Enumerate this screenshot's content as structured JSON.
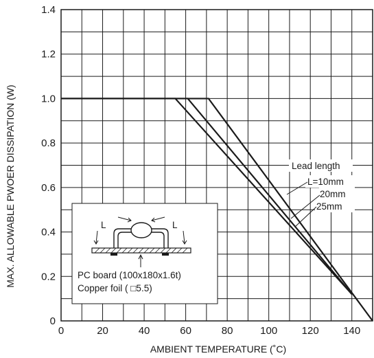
{
  "chart_data": {
    "type": "line",
    "title": "",
    "xlabel": "AMBIENT TEMPERATURE (˚C)",
    "ylabel": "MAX. ALLOWABLE PWOER DISSIPATION (W)",
    "xlim": [
      0,
      150
    ],
    "ylim": [
      0,
      1.4
    ],
    "x_ticks": [
      "0",
      "20",
      "40",
      "60",
      "80",
      "100",
      "120",
      "140"
    ],
    "y_ticks": [
      "0",
      "0.2",
      "0.4",
      "0.6",
      "0.8",
      "1.0",
      "1.2",
      "1.4"
    ],
    "grid": true,
    "series": [
      {
        "name": "L=10mm",
        "x": [
          0,
          55,
          140
        ],
        "y": [
          1.0,
          1.0,
          0.12
        ]
      },
      {
        "name": "20mm",
        "x": [
          0,
          61,
          140
        ],
        "y": [
          1.0,
          1.0,
          0.12
        ]
      },
      {
        "name": "25mm",
        "x": [
          0,
          71,
          150
        ],
        "y": [
          1.0,
          1.0,
          0.0
        ]
      }
    ],
    "annotations": {
      "legend_title": "Lead length",
      "inset_lead_label": "L",
      "inset_line1": "PC board (100x180x1.6t)",
      "inset_line2": "Copper foil ( □5.5)"
    }
  }
}
